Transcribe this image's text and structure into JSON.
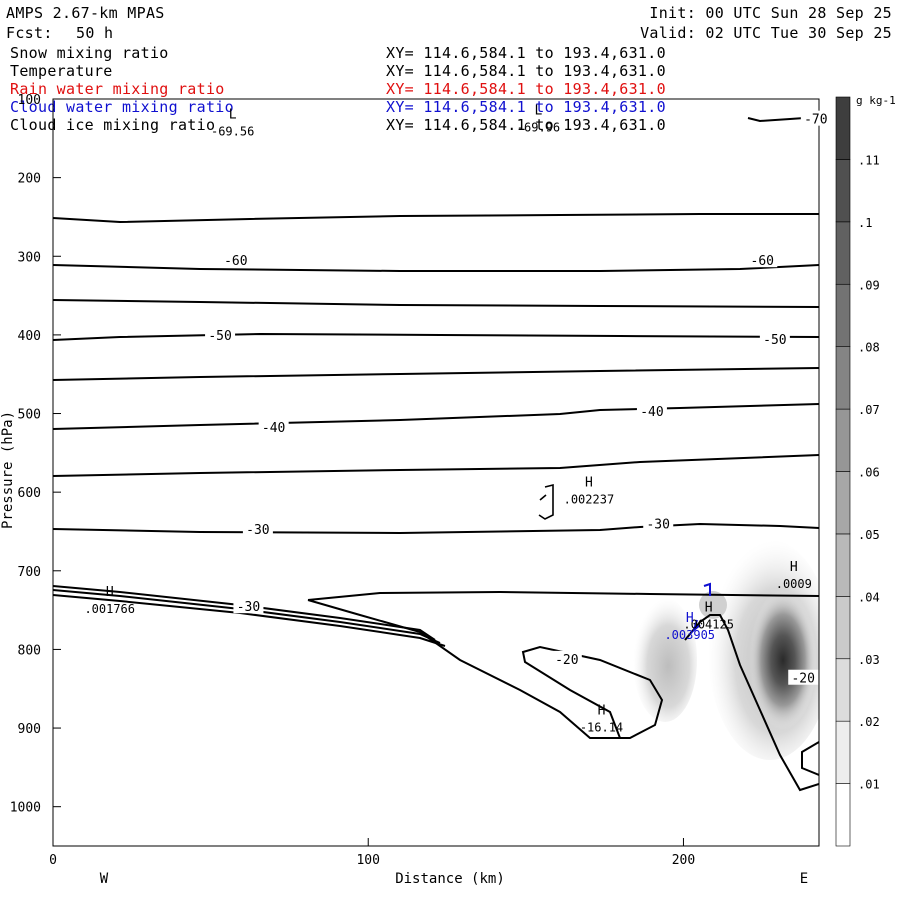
{
  "header": {
    "model": "AMPS 2.67-km MPAS",
    "forecast_label": "Fcst:",
    "forecast_value": "50 h",
    "init": "Init: 00 UTC Sun 28 Sep 25",
    "valid": "Valid: 02 UTC Tue 30 Sep 25"
  },
  "fields": [
    {
      "name": "Snow mixing ratio",
      "xy": "XY= 114.6,584.1 to 193.4,631.0",
      "color": "#000000"
    },
    {
      "name": "Temperature",
      "xy": "XY= 114.6,584.1 to 193.4,631.0",
      "color": "#000000"
    },
    {
      "name": "Rain water mixing ratio",
      "xy": "XY= 114.6,584.1 to 193.4,631.0",
      "color": "#e01010"
    },
    {
      "name": "Cloud water mixing ratio",
      "xy": "XY= 114.6,584.1 to 193.4,631.0",
      "color": "#1010d0"
    },
    {
      "name": "Cloud ice mixing ratio",
      "xy": "XY= 114.6,584.1 to 193.4,631.0",
      "color": "#000000"
    }
  ],
  "chart_data": {
    "type": "cross-section",
    "xlabel": "Distance (km)",
    "ylabel": "Pressure (hPa)",
    "xlim": [
      0,
      243
    ],
    "ylim": [
      1050,
      100
    ],
    "x_ticks": [
      0,
      100,
      200
    ],
    "y_ticks": [
      100,
      200,
      300,
      400,
      500,
      600,
      700,
      800,
      900,
      1000
    ],
    "west_label": "W",
    "east_label": "E",
    "colorbar": {
      "unit": "g kg-1",
      "levels": [
        0.01,
        0.02,
        0.03,
        0.04,
        0.05,
        0.06,
        0.07,
        0.08,
        0.09,
        0.1,
        0.11
      ],
      "labels": [
        ".01",
        ".02",
        ".03",
        ".04",
        ".05",
        ".06",
        ".07",
        ".08",
        ".09",
        ".1",
        ".11"
      ]
    },
    "temperature_contour_labels": [
      {
        "x": 242,
        "p": 125,
        "text": "-70"
      },
      {
        "x": 58,
        "p": 305,
        "text": "-60"
      },
      {
        "x": 225,
        "p": 305,
        "text": "-60"
      },
      {
        "x": 53,
        "p": 400,
        "text": "-50"
      },
      {
        "x": 229,
        "p": 405,
        "text": "-50"
      },
      {
        "x": 70,
        "p": 517,
        "text": "-40"
      },
      {
        "x": 190,
        "p": 497,
        "text": "-40"
      },
      {
        "x": 65,
        "p": 647,
        "text": "-30"
      },
      {
        "x": 192,
        "p": 640,
        "text": "-30"
      },
      {
        "x": 62,
        "p": 745,
        "text": "-30"
      },
      {
        "x": 163,
        "p": 812,
        "text": "-20"
      },
      {
        "x": 238,
        "p": 836,
        "text": "-20"
      }
    ],
    "extrema": [
      {
        "mark": "L",
        "value": "-69.56",
        "x": 57,
        "p": 125,
        "color": "#000000"
      },
      {
        "mark": "L",
        "value": "-69.96",
        "x": 154,
        "p": 120,
        "color": "#000000"
      },
      {
        "mark": "H",
        "value": ".002237",
        "x": 170,
        "p": 593,
        "color": "#000000"
      },
      {
        "mark": "H",
        "value": ".001766",
        "x": 18,
        "p": 732,
        "color": "#000000"
      },
      {
        "mark": "H",
        "value": ".0009",
        "x": 235,
        "p": 700,
        "color": "#000000"
      },
      {
        "mark": "H",
        "value": ".004125",
        "x": 208,
        "p": 752,
        "color": "#000000"
      },
      {
        "mark": "H",
        "value": ".003905",
        "x": 202,
        "p": 765,
        "color": "#1010d0"
      },
      {
        "mark": "H",
        "value": "-16.14",
        "x": 174,
        "p": 883,
        "color": "#000000"
      }
    ]
  }
}
